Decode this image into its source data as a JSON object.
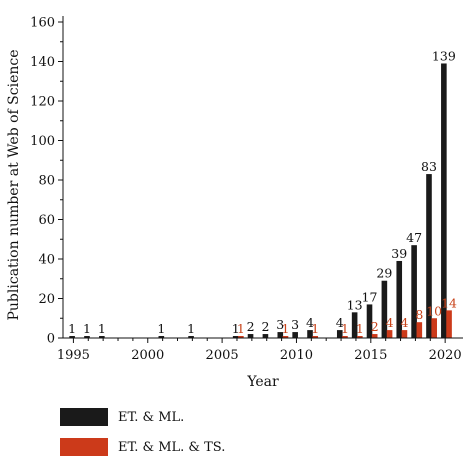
{
  "chart_data": {
    "type": "bar",
    "xlabel": "Year",
    "ylabel": "Publication number at Web of Science",
    "ylim": [
      0,
      160
    ],
    "yticks": [
      0,
      20,
      40,
      60,
      80,
      100,
      120,
      140,
      160
    ],
    "xticks": [
      1995,
      2000,
      2005,
      2010,
      2015,
      2020
    ],
    "legend_placement": "bottom",
    "grid": false,
    "series": [
      {
        "name": "ET. & ML.",
        "color": "#1a1a1a",
        "label_color": "#111111",
        "points": [
          {
            "x": 1995,
            "y": 1
          },
          {
            "x": 1996,
            "y": 1
          },
          {
            "x": 1997,
            "y": 1
          },
          {
            "x": 2001,
            "y": 1
          },
          {
            "x": 2003,
            "y": 1
          },
          {
            "x": 2006,
            "y": 1
          },
          {
            "x": 2007,
            "y": 2
          },
          {
            "x": 2008,
            "y": 2
          },
          {
            "x": 2009,
            "y": 3
          },
          {
            "x": 2010,
            "y": 3
          },
          {
            "x": 2011,
            "y": 4
          },
          {
            "x": 2013,
            "y": 4
          },
          {
            "x": 2014,
            "y": 13
          },
          {
            "x": 2015,
            "y": 17
          },
          {
            "x": 2016,
            "y": 29
          },
          {
            "x": 2017,
            "y": 39
          },
          {
            "x": 2018,
            "y": 47
          },
          {
            "x": 2019,
            "y": 83
          },
          {
            "x": 2020,
            "y": 139
          }
        ]
      },
      {
        "name": "ET. & ML. & TS.",
        "color": "#cc3a1a",
        "label_color": "#c8431a",
        "points": [
          {
            "x": 2006,
            "y": 1
          },
          {
            "x": 2009,
            "y": 1
          },
          {
            "x": 2011,
            "y": 1
          },
          {
            "x": 2013,
            "y": 1
          },
          {
            "x": 2014,
            "y": 1
          },
          {
            "x": 2015,
            "y": 2
          },
          {
            "x": 2016,
            "y": 4
          },
          {
            "x": 2017,
            "y": 4
          },
          {
            "x": 2018,
            "y": 8
          },
          {
            "x": 2019,
            "y": 10
          },
          {
            "x": 2020,
            "y": 14
          }
        ]
      }
    ]
  }
}
